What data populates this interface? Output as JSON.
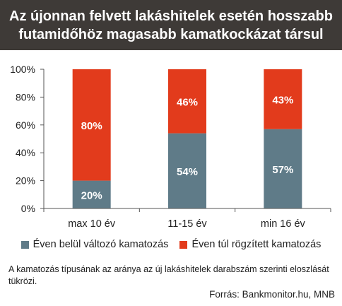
{
  "title_lines": [
    "Az újonnan felvett lakáshitelek esetén hosszabb",
    "futamidőhöz magasabb kamatkockázat társul"
  ],
  "colors": {
    "title_bg": "#3e3a37",
    "series_variable": "#5f7b88",
    "series_fixed": "#e23b1c",
    "axis": "#555555"
  },
  "chart_data": {
    "type": "bar",
    "stacked": true,
    "title": "Az újonnan felvett lakáshitelek esetén hosszabb futamidőhöz magasabb kamatkockázat társul",
    "categories": [
      "max 10 év",
      "11-15 év",
      "min 16 év"
    ],
    "series": [
      {
        "name": "Éven belül változó kamatozás",
        "values": [
          20,
          54,
          57
        ],
        "labels": [
          "20%",
          "54%",
          "57%"
        ]
      },
      {
        "name": "Éven túl rögzített kamatozás",
        "values": [
          80,
          46,
          43
        ],
        "labels": [
          "80%",
          "46%",
          "43%"
        ]
      }
    ],
    "ylim": [
      0,
      100
    ],
    "yticks": [
      "0%",
      "20%",
      "40%",
      "60%",
      "80%",
      "100%"
    ],
    "grid": false,
    "legend": "bottom"
  },
  "note": "A kamatozás típusának az aránya az új lakáshitelek darabszám szerinti eloszlását tükrözi.",
  "source": "Forrás: Bankmonitor.hu, MNB"
}
